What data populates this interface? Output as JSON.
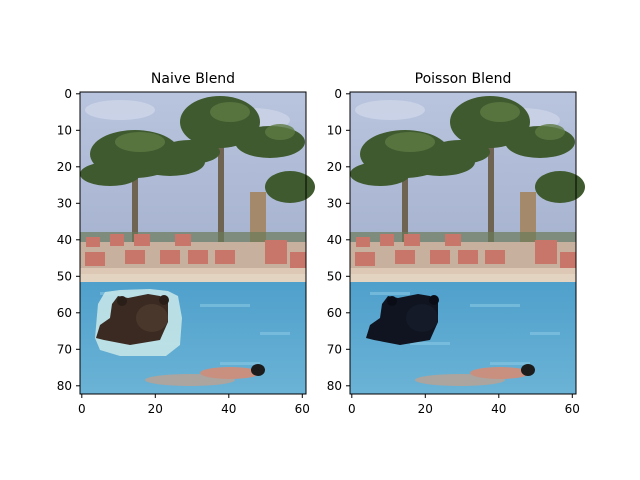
{
  "panels": [
    {
      "title": "Naive Blend",
      "xticks": [
        "0",
        "20",
        "40",
        "60"
      ],
      "yticks": [
        "0",
        "10",
        "20",
        "30",
        "40",
        "50",
        "60",
        "70",
        "80"
      ]
    },
    {
      "title": "Poisson Blend",
      "xticks": [
        "0",
        "20",
        "40",
        "60"
      ],
      "yticks": [
        "0",
        "10",
        "20",
        "30",
        "40",
        "50",
        "60",
        "70",
        "80"
      ]
    }
  ],
  "image_axes": {
    "x_range": [
      0,
      61
    ],
    "y_range": [
      0,
      82
    ]
  },
  "colors": {
    "sky": "#9fb0cc",
    "palm": "#4f6a3a",
    "deck": "#c9b4a2",
    "pool": "#5ba8cf",
    "bear_naive": "#3a2a22",
    "bear_poisson": "#0f1420"
  }
}
